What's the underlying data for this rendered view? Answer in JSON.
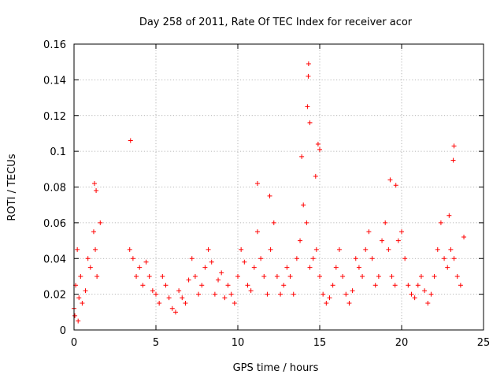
{
  "chart_data": {
    "type": "scatter",
    "title": "Day 258 of 2011, Rate Of TEC Index for receiver acor",
    "xlabel": "GPS time / hours",
    "ylabel": "ROTI / TECUs",
    "xlim": [
      0,
      25
    ],
    "ylim": [
      0,
      0.16
    ],
    "x_ticks": [
      "0",
      "5",
      "10",
      "15",
      "20",
      "25"
    ],
    "y_ticks": [
      "0",
      "0.02",
      "0.04",
      "0.06",
      "0.08",
      "0.1",
      "0.12",
      "0.14",
      "0.16"
    ],
    "grid": true,
    "marker": "+",
    "color": "#ff0000",
    "series": [
      {
        "x": [
          0.0,
          0.1,
          0.2,
          0.3,
          0.4,
          0.5,
          0.7,
          0.85,
          1.0,
          1.2,
          1.3,
          1.4,
          1.6,
          3.4,
          3.6,
          3.8,
          4.0,
          4.2,
          4.4,
          4.6,
          4.8,
          5.0,
          5.2,
          5.4,
          5.6,
          5.8,
          6.0,
          6.2,
          6.4,
          6.6,
          6.8,
          7.0,
          7.2,
          7.4,
          7.6,
          7.8,
          8.0,
          8.2,
          8.4,
          8.6,
          8.8,
          9.0,
          9.2,
          9.4,
          9.6,
          9.8,
          10.0,
          10.2,
          10.4,
          10.6,
          10.8,
          11.0,
          11.2,
          11.4,
          11.6,
          11.8,
          12.0,
          12.2,
          12.4,
          12.6,
          12.8,
          13.0,
          13.2,
          13.4,
          13.6,
          13.8,
          14.0,
          14.2,
          14.4,
          14.6,
          14.8,
          15.0,
          15.2,
          15.4,
          15.6,
          15.8,
          16.0,
          16.2,
          16.4,
          16.6,
          16.8,
          17.0,
          17.2,
          17.4,
          17.6,
          17.8,
          18.0,
          18.2,
          18.4,
          18.6,
          18.8,
          19.0,
          19.2,
          19.4,
          19.6,
          19.8,
          20.0,
          20.2,
          20.4,
          20.6,
          20.8,
          21.0,
          21.2,
          21.4,
          21.6,
          21.8,
          22.0,
          22.2,
          22.4,
          22.6,
          22.8,
          23.0,
          23.2,
          23.4,
          23.6,
          23.8,
          0.05,
          0.25,
          1.25,
          1.35,
          3.45,
          11.2,
          11.95,
          13.9,
          14.25,
          14.3,
          14.32,
          14.4,
          14.75,
          14.9,
          15.0,
          19.3,
          19.65,
          22.9,
          23.15,
          23.2
        ],
        "y": [
          0.012,
          0.025,
          0.045,
          0.018,
          0.03,
          0.015,
          0.022,
          0.04,
          0.035,
          0.055,
          0.045,
          0.03,
          0.06,
          0.045,
          0.04,
          0.03,
          0.035,
          0.025,
          0.038,
          0.03,
          0.022,
          0.02,
          0.015,
          0.03,
          0.025,
          0.018,
          0.012,
          0.01,
          0.022,
          0.018,
          0.015,
          0.028,
          0.04,
          0.03,
          0.02,
          0.025,
          0.035,
          0.045,
          0.038,
          0.02,
          0.028,
          0.032,
          0.018,
          0.025,
          0.02,
          0.015,
          0.03,
          0.045,
          0.038,
          0.025,
          0.022,
          0.035,
          0.055,
          0.04,
          0.03,
          0.02,
          0.045,
          0.06,
          0.03,
          0.02,
          0.025,
          0.035,
          0.03,
          0.02,
          0.04,
          0.05,
          0.07,
          0.06,
          0.035,
          0.04,
          0.045,
          0.03,
          0.02,
          0.015,
          0.018,
          0.025,
          0.035,
          0.045,
          0.03,
          0.02,
          0.015,
          0.022,
          0.04,
          0.035,
          0.03,
          0.045,
          0.055,
          0.04,
          0.025,
          0.03,
          0.05,
          0.06,
          0.045,
          0.03,
          0.025,
          0.05,
          0.055,
          0.04,
          0.025,
          0.02,
          0.018,
          0.025,
          0.03,
          0.022,
          0.015,
          0.02,
          0.03,
          0.045,
          0.06,
          0.04,
          0.035,
          0.045,
          0.04,
          0.03,
          0.025,
          0.052,
          0.008,
          0.005,
          0.082,
          0.078,
          0.106,
          0.082,
          0.075,
          0.097,
          0.125,
          0.142,
          0.149,
          0.116,
          0.086,
          0.104,
          0.101,
          0.084,
          0.081,
          0.064,
          0.095,
          0.103
        ]
      }
    ]
  }
}
